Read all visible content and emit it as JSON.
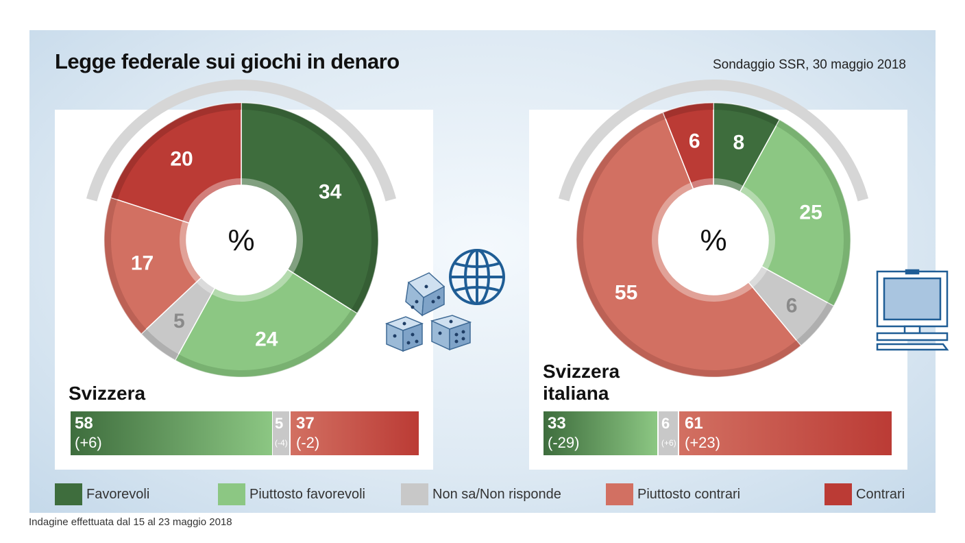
{
  "title": "Legge federale sui giochi in denaro",
  "subtitle": "Sondaggio SSR, 30 maggio 2018",
  "footnote": "Indagine effettuata dal 15 al 23 maggio 2018",
  "colors": {
    "favorevoli": "#3e6d3d",
    "piuttosto_favorevoli": "#8cc783",
    "non_sa": "#c8c8c8",
    "piuttosto_contrari": "#d27062",
    "contrari": "#bb3b35"
  },
  "legend": [
    {
      "label": "Favorevoli",
      "color": "#3e6d3d"
    },
    {
      "label": "Piuttosto favorevoli",
      "color": "#8cc783"
    },
    {
      "label": "Non sa/Non risponde",
      "color": "#c8c8c8"
    },
    {
      "label": "Piuttosto contrari",
      "color": "#d27062"
    },
    {
      "label": "Contrari",
      "color": "#bb3b35"
    }
  ],
  "chart_data": [
    {
      "type": "pie",
      "region": "Svizzera",
      "center_label": "%",
      "categories": [
        "Favorevoli",
        "Piuttosto favorevoli",
        "Non sa/Non risponde",
        "Piuttosto contrari",
        "Contrari"
      ],
      "values": [
        34,
        24,
        5,
        17,
        20
      ],
      "summary": {
        "favor": {
          "value": "58",
          "change": "(+6)"
        },
        "neutral": {
          "value": "5",
          "change": "(-4)"
        },
        "against": {
          "value": "37",
          "change": "(-2)"
        }
      }
    },
    {
      "type": "pie",
      "region": "Svizzera italiana",
      "center_label": "%",
      "categories": [
        "Favorevoli",
        "Piuttosto favorevoli",
        "Non sa/Non risponde",
        "Piuttosto contrari",
        "Contrari"
      ],
      "values": [
        8,
        25,
        6,
        55,
        6
      ],
      "summary": {
        "favor": {
          "value": "33",
          "change": "(-29)"
        },
        "neutral": {
          "value": "6",
          "change": "(+6)"
        },
        "against": {
          "value": "61",
          "change": "(+23)"
        }
      }
    }
  ],
  "icons": [
    "dice-icon",
    "globe-icon",
    "computer-icon"
  ]
}
